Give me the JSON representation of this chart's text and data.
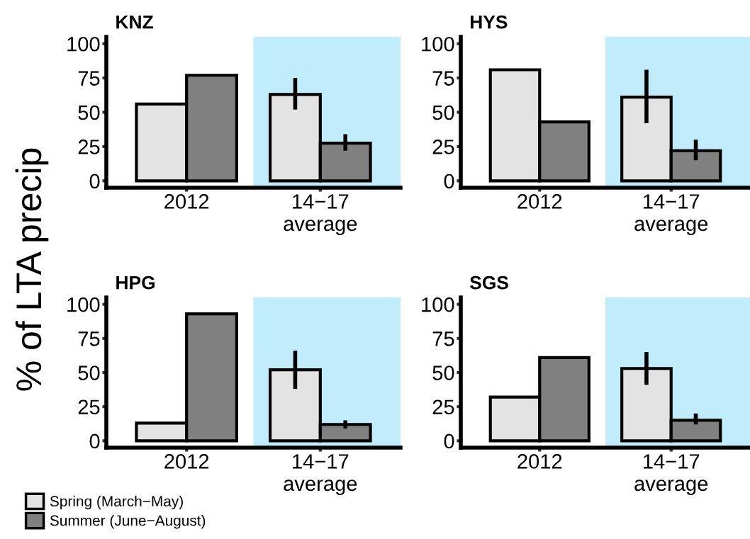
{
  "chart_data": [
    {
      "type": "bar",
      "title": "KNZ",
      "ylabel": "% of LTA precip",
      "categories": [
        "2012",
        "14−17\naverage"
      ],
      "ylim": [
        -5,
        105
      ],
      "yticks": [
        0,
        25,
        50,
        75,
        100
      ],
      "grid": false,
      "legend": "bottom left",
      "series": [
        {
          "name": "Spring (March−May)",
          "color": "#e3e3e3",
          "values": [
            56,
            63
          ],
          "errors": [
            null,
            [
              52,
              75
            ]
          ]
        },
        {
          "name": "Summer (June−August)",
          "color": "#808080",
          "values": [
            77,
            27.5
          ],
          "errors": [
            null,
            [
              22,
              34
            ]
          ]
        }
      ]
    },
    {
      "type": "bar",
      "title": "HYS",
      "categories": [
        "2012",
        "14−17\naverage"
      ],
      "ylim": [
        -5,
        105
      ],
      "yticks": [
        0,
        25,
        50,
        75,
        100
      ],
      "grid": false,
      "series": [
        {
          "color": "#e3e3e3",
          "values": [
            81,
            61
          ],
          "errors": [
            null,
            [
              42,
              81
            ]
          ]
        },
        {
          "color": "#808080",
          "values": [
            43,
            22
          ],
          "errors": [
            null,
            [
              15,
              30
            ]
          ]
        }
      ]
    },
    {
      "type": "bar",
      "title": "HPG",
      "categories": [
        "2012",
        "14−17\naverage"
      ],
      "ylim": [
        -5,
        105
      ],
      "yticks": [
        0,
        25,
        50,
        75,
        100
      ],
      "grid": false,
      "series": [
        {
          "color": "#e3e3e3",
          "values": [
            13,
            52
          ],
          "errors": [
            null,
            [
              38,
              66
            ]
          ]
        },
        {
          "color": "#808080",
          "values": [
            93,
            12
          ],
          "errors": [
            null,
            [
              9,
              15
            ]
          ]
        }
      ]
    },
    {
      "type": "bar",
      "title": "SGS",
      "categories": [
        "2012",
        "14−17\naverage"
      ],
      "ylim": [
        -5,
        105
      ],
      "yticks": [
        0,
        25,
        50,
        75,
        100
      ],
      "grid": false,
      "series": [
        {
          "color": "#e3e3e3",
          "values": [
            32,
            53
          ],
          "errors": [
            null,
            [
              41,
              65
            ]
          ]
        },
        {
          "color": "#808080",
          "values": [
            61,
            15
          ],
          "errors": [
            null,
            [
              12,
              20
            ]
          ]
        }
      ]
    }
  ]
}
